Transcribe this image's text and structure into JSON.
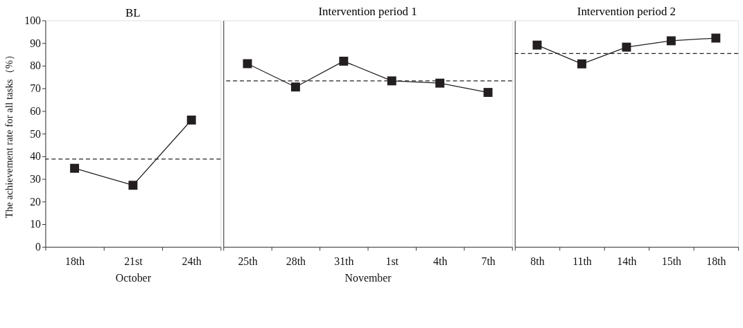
{
  "chart_data": [
    {
      "type": "line",
      "title": "BL",
      "xlabel": "October",
      "ylabel": "The achievement rate for all tasks（%）",
      "categories": [
        "18th",
        "21st",
        "24th"
      ],
      "series": [
        {
          "color": "#231f20",
          "values": [
            34.7,
            27.2,
            56
          ]
        }
      ],
      "ylim": [
        0,
        100
      ],
      "yticks": [
        0,
        10,
        20,
        30,
        40,
        50,
        60,
        70,
        80,
        90,
        100
      ],
      "marker": "square",
      "line_style": "solid",
      "ref_lines": [
        {
          "axis": "y",
          "value": 38.8,
          "color": "#231f20",
          "line_style": "dashed"
        }
      ]
    },
    {
      "type": "line",
      "title": "Intervention period 1",
      "xlabel": "November",
      "categories": [
        "25th",
        "28th",
        "31th",
        "1st",
        "4th",
        "7th"
      ],
      "series": [
        {
          "color": "#231f20",
          "values": [
            80.9,
            70.6,
            82,
            73.3,
            72.3,
            68.2
          ]
        }
      ],
      "ylim": [
        0,
        100
      ],
      "marker": "square",
      "line_style": "solid",
      "tick_labels": "x",
      "ref_lines": [
        {
          "axis": "y",
          "value": 73.3,
          "color": "#231f20",
          "line_style": "dashed"
        }
      ]
    },
    {
      "type": "line",
      "title": "Intervention period 2",
      "categories": [
        "8th",
        "11th",
        "14th",
        "15th",
        "18th"
      ],
      "series": [
        {
          "color": "#231f20",
          "values": [
            89.1,
            80.8,
            88.2,
            91,
            92.2
          ]
        }
      ],
      "ylim": [
        0,
        100
      ],
      "marker": "square",
      "line_style": "solid",
      "tick_labels": "x",
      "ref_lines": [
        {
          "axis": "y",
          "value": 85.4,
          "color": "#231f20",
          "line_style": "dashed"
        }
      ]
    }
  ]
}
